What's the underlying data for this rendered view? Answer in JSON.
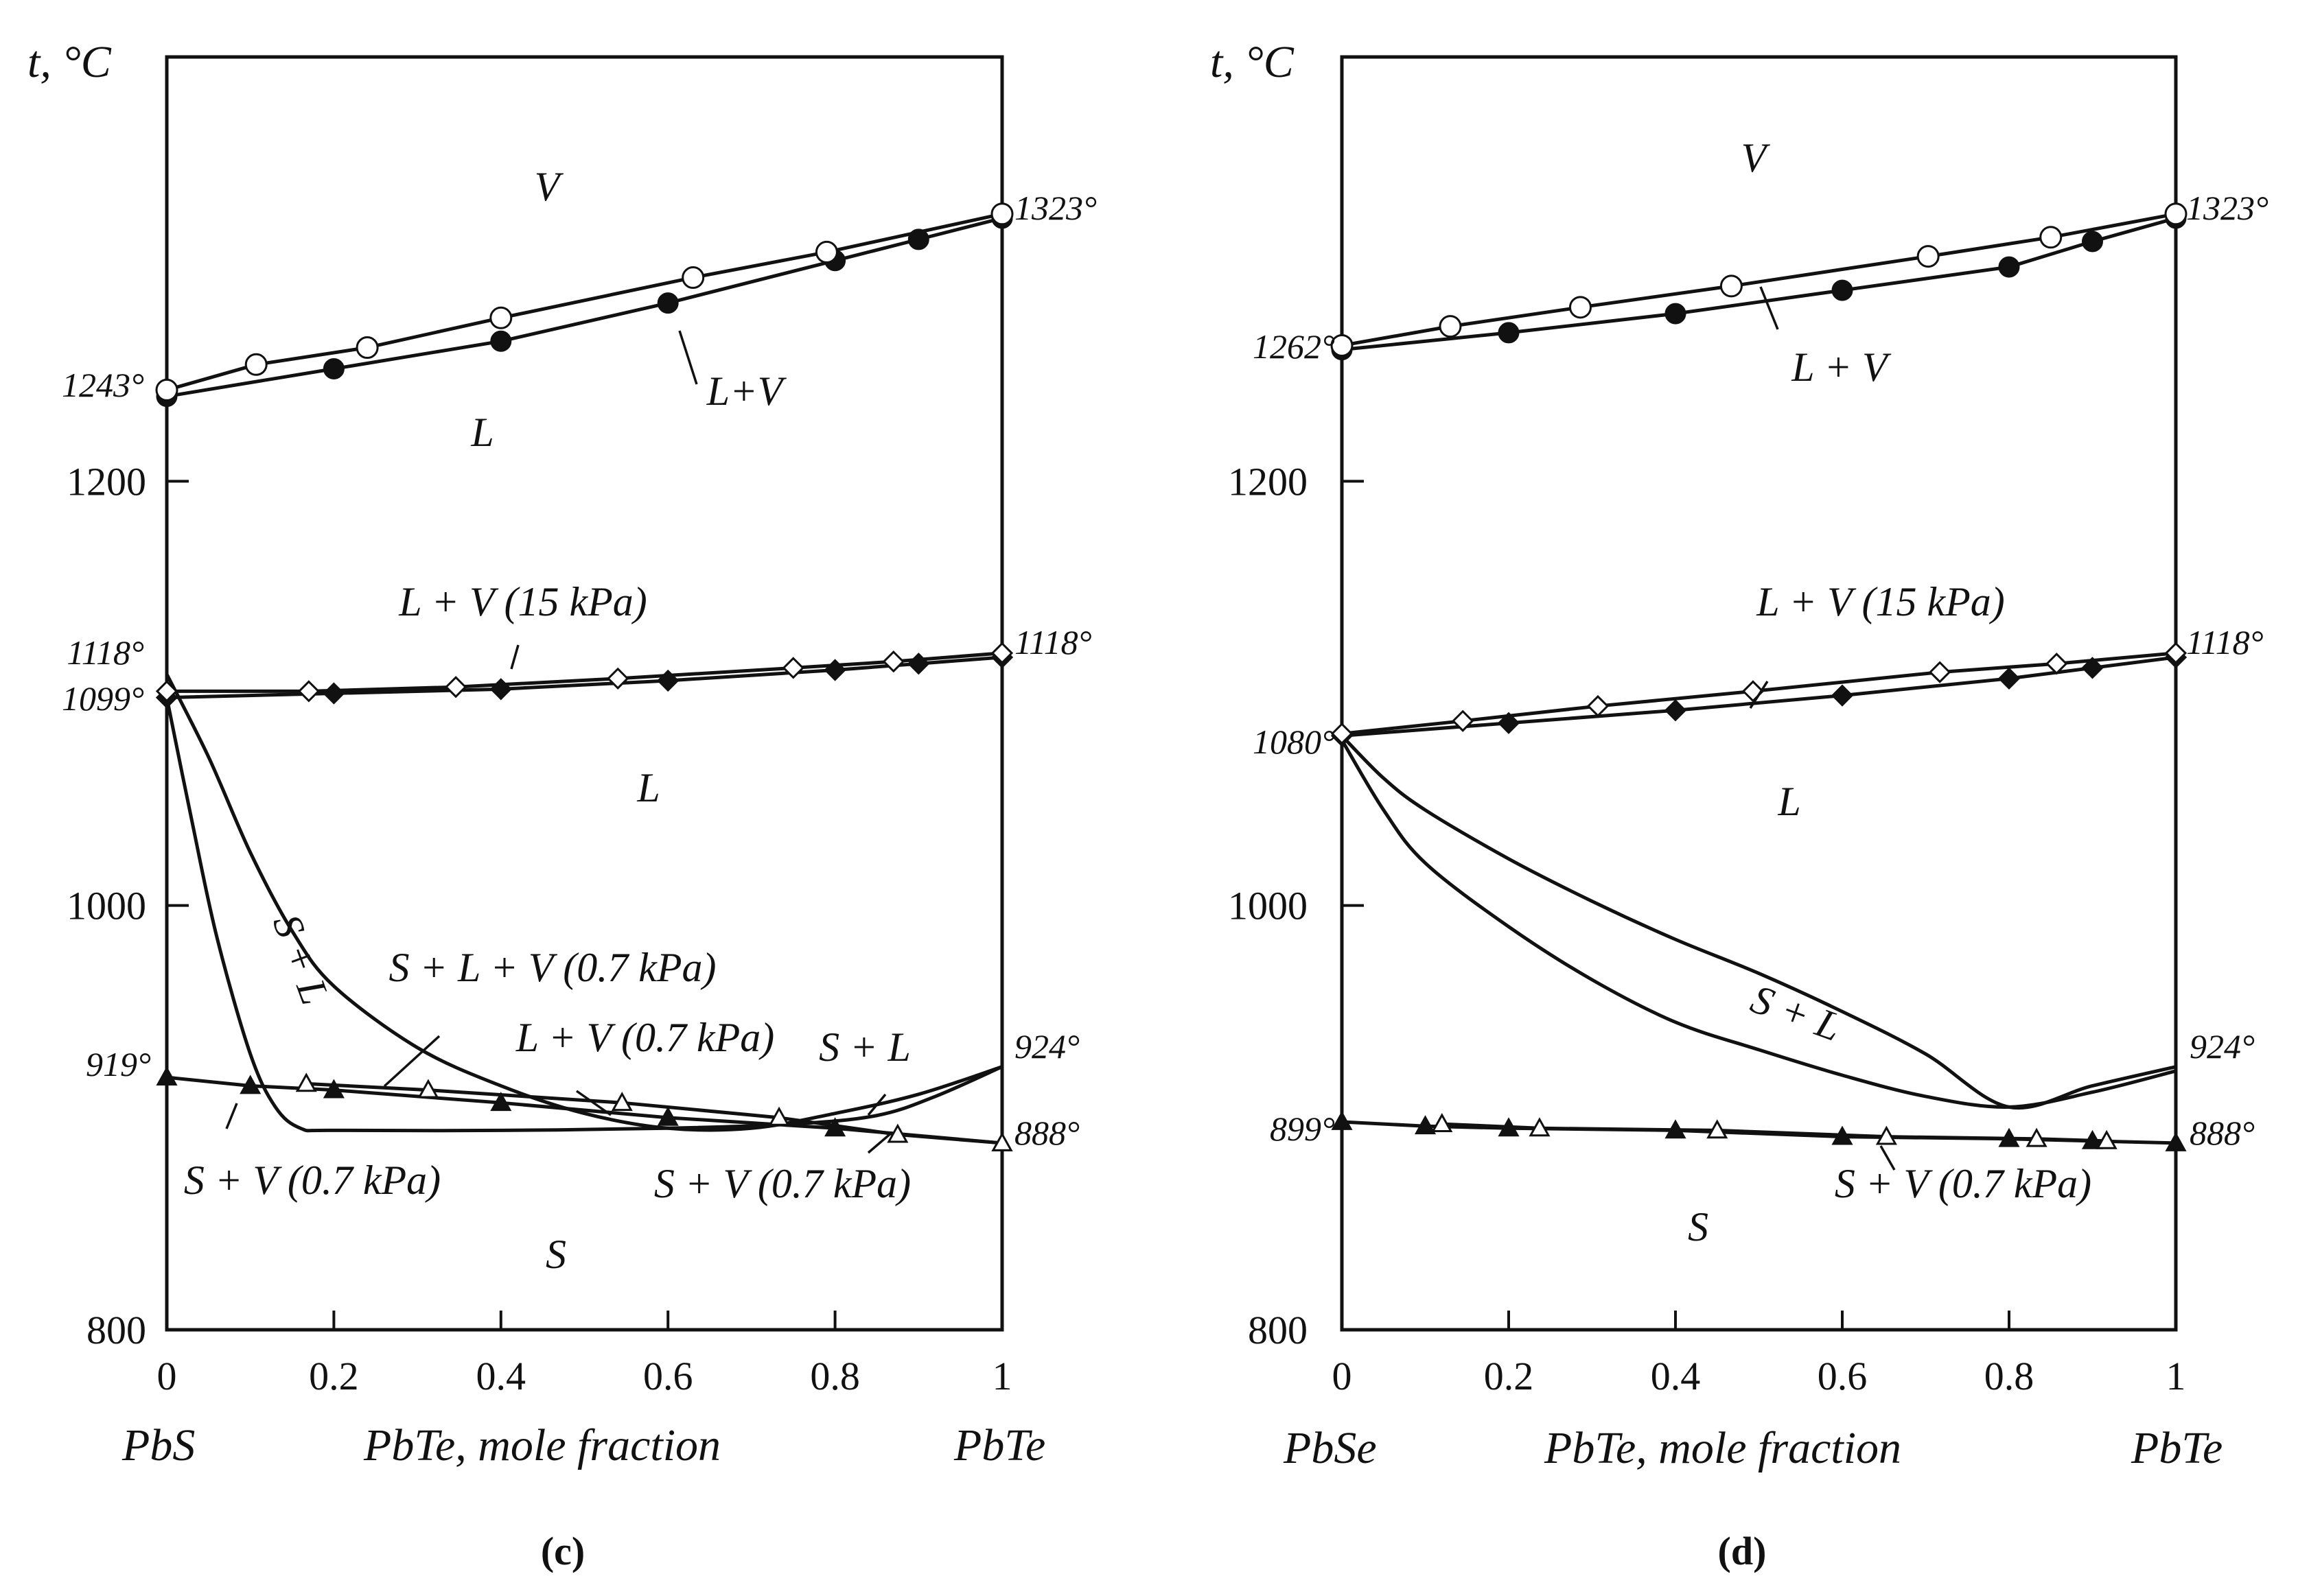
{
  "chart_data": [
    {
      "type": "line",
      "panel_label": "(c)",
      "y_axis_label": "t, °C",
      "x_axis_label": "PbTe, mole fraction",
      "x_left_label": "PbS",
      "x_right_label": "PbTe",
      "x_ticks": [
        "0",
        "0.2",
        "0.4",
        "0.6",
        "0.8",
        "1"
      ],
      "y_ticks": [
        "1200",
        "1000",
        "800"
      ],
      "xlim": [
        0,
        1
      ],
      "ylim": [
        800,
        1400
      ],
      "series": [
        {
          "name": "L+V liquidus (1 atm, filled circles)",
          "marker": "filled-circle",
          "x": [
            0,
            0.2,
            0.4,
            0.6,
            0.8,
            0.9,
            1.0
          ],
          "y": [
            1240,
            1253,
            1266,
            1284,
            1304,
            1314,
            1324
          ]
        },
        {
          "name": "L+V vapor (1 atm, open circles)",
          "marker": "open-circle",
          "x": [
            0,
            0.107,
            0.24,
            0.4,
            0.63,
            0.79,
            1.0
          ],
          "y": [
            1243,
            1255,
            1263,
            1277,
            1296,
            1308,
            1326
          ]
        },
        {
          "name": "L+V (15 kPa) filled diamonds",
          "marker": "filled-diamond",
          "x": [
            0,
            0.2,
            0.4,
            0.6,
            0.8,
            0.9,
            1.0
          ],
          "y": [
            1098,
            1100,
            1102,
            1106,
            1111,
            1114,
            1117
          ]
        },
        {
          "name": "L+V (15 kPa) open diamonds",
          "marker": "open-diamond",
          "x": [
            0,
            0.17,
            0.346,
            0.54,
            0.75,
            0.87,
            1.0
          ],
          "y": [
            1101,
            1101,
            1103,
            1107,
            1112,
            1115,
            1119
          ]
        },
        {
          "name": "S+V (0.7 kPa) filled triangles",
          "marker": "filled-triangle",
          "x": [
            0,
            0.1,
            0.2,
            0.4,
            0.6,
            0.8,
            1.0
          ],
          "y": [
            919,
            915,
            913,
            907,
            900,
            895,
            888
          ]
        },
        {
          "name": "S+V (0.7 kPa) open triangles",
          "marker": "open-triangle",
          "x": [
            0.167,
            0.313,
            0.545,
            0.733,
            0.875,
            1.0
          ],
          "y": [
            916,
            913,
            907,
            900,
            892,
            888
          ]
        },
        {
          "name": "S+L upper boundary",
          "marker": "none",
          "x": [
            0,
            0.05,
            0.1,
            0.15,
            0.2,
            0.3,
            0.4,
            0.5,
            0.6,
            0.7,
            0.8,
            0.9,
            1.0
          ],
          "y": [
            1109,
            1070,
            1025,
            988,
            962,
            933,
            915,
            902,
            895,
            895,
            902,
            911,
            924
          ]
        },
        {
          "name": "S+L lower boundary",
          "marker": "none",
          "x": [
            0,
            0.03,
            0.06,
            0.1,
            0.13,
            0.16,
            0.2,
            0.4,
            0.6,
            0.75,
            0.85,
            0.92,
            1.0
          ],
          "y": [
            1098,
            1040,
            985,
            930,
            905,
            895,
            894,
            894,
            895,
            897,
            901,
            910,
            924
          ]
        }
      ],
      "point_labels": [
        "1243°",
        "1323°",
        "1118°",
        "1099°",
        "1118°",
        "919°",
        "924°",
        "888°"
      ],
      "region_labels": [
        "V",
        "L+V",
        "L",
        "L + V (15 kPa)",
        "L",
        "S + L",
        "S + L + V (0.7 kPa)",
        "L + V (0.7 kPa)",
        "S + L",
        "S + V (0.7 kPa)",
        "S + V (0.7 kPa)",
        "S"
      ]
    },
    {
      "type": "line",
      "panel_label": "(d)",
      "y_axis_label": "t, °C",
      "x_axis_label": "PbTe, mole fraction",
      "x_left_label": "PbSe",
      "x_right_label": "PbTe",
      "x_ticks": [
        "0",
        "0.2",
        "0.4",
        "0.6",
        "0.8",
        "1"
      ],
      "y_ticks": [
        "1200",
        "1000",
        "800"
      ],
      "xlim": [
        0,
        1
      ],
      "ylim": [
        800,
        1400
      ],
      "series": [
        {
          "name": "L+V liquidus (1 atm, filled circles)",
          "marker": "filled-circle",
          "x": [
            0,
            0.2,
            0.4,
            0.6,
            0.8,
            0.9,
            1.0
          ],
          "y": [
            1262,
            1270,
            1279,
            1290,
            1301,
            1313,
            1324
          ]
        },
        {
          "name": "L+V vapor (1 atm, open circles)",
          "marker": "open-circle",
          "x": [
            0,
            0.13,
            0.286,
            0.467,
            0.703,
            0.85,
            1.0
          ],
          "y": [
            1264,
            1273,
            1282,
            1292,
            1306,
            1315,
            1326
          ]
        },
        {
          "name": "L+V (15 kPa) filled diamonds",
          "marker": "filled-diamond",
          "x": [
            0,
            0.2,
            0.4,
            0.6,
            0.8,
            0.9,
            1.0
          ],
          "y": [
            1080,
            1086,
            1092,
            1099,
            1107,
            1112,
            1117
          ]
        },
        {
          "name": "L+V (15 kPa) open diamonds",
          "marker": "open-diamond",
          "x": [
            0,
            0.145,
            0.307,
            0.493,
            0.717,
            0.857,
            1.0
          ],
          "y": [
            1081,
            1087,
            1094,
            1101,
            1110,
            1114,
            1119
          ]
        },
        {
          "name": "S+V (0.7 kPa) filled triangles",
          "marker": "filled-triangle",
          "x": [
            0,
            0.1,
            0.2,
            0.4,
            0.6,
            0.8,
            0.9,
            1.0
          ],
          "y": [
            898,
            896,
            895,
            894,
            891,
            890,
            889,
            888
          ]
        },
        {
          "name": "S+V (0.7 kPa) open triangles",
          "marker": "open-triangle",
          "x": [
            0.12,
            0.237,
            0.45,
            0.653,
            0.833,
            0.917
          ],
          "y": [
            897,
            895,
            894,
            891,
            890,
            889
          ]
        },
        {
          "name": "S+L upper boundary",
          "marker": "none",
          "x": [
            0,
            0.05,
            0.1,
            0.2,
            0.3,
            0.4,
            0.5,
            0.6,
            0.7,
            0.8,
            0.9,
            1.0
          ],
          "y": [
            1080,
            1060,
            1045,
            1022,
            1002,
            984,
            968,
            950,
            930,
            905,
            915,
            924
          ]
        },
        {
          "name": "S+L lower boundary",
          "marker": "none",
          "x": [
            0,
            0.05,
            0.1,
            0.2,
            0.3,
            0.4,
            0.5,
            0.6,
            0.7,
            0.8,
            0.9,
            1.0
          ],
          "y": [
            1078,
            1045,
            1020,
            990,
            965,
            945,
            932,
            920,
            910,
            905,
            912,
            922
          ]
        }
      ],
      "point_labels": [
        "1262°",
        "1323°",
        "1080°",
        "1118°",
        "899°",
        "924°",
        "888°"
      ],
      "region_labels": [
        "V",
        "L + V",
        "L + V (15 kPa)",
        "L",
        "S + L",
        "S + V (0.7 kPa)",
        "S"
      ]
    }
  ]
}
